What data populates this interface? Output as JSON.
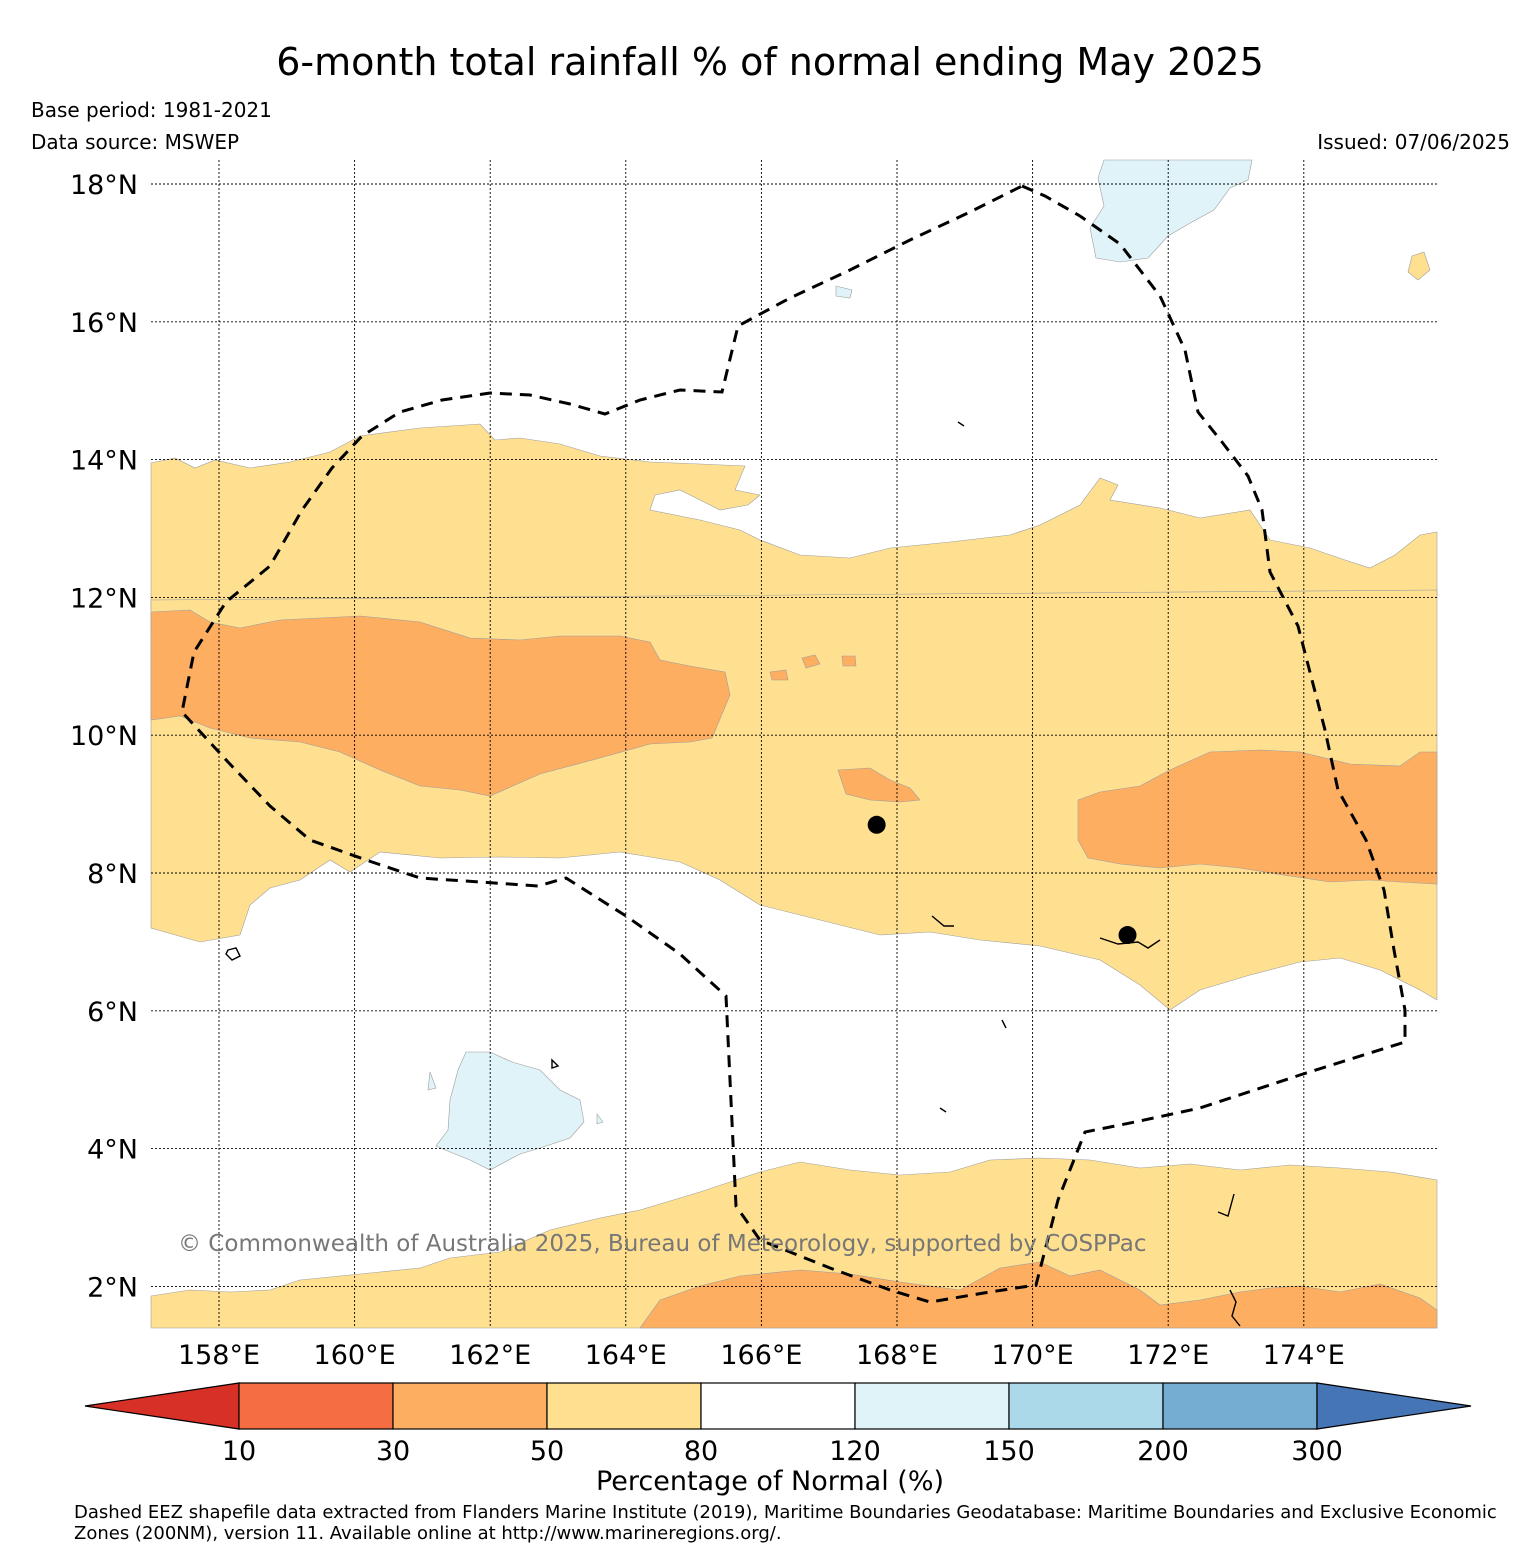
{
  "header": {
    "title": "6-month total rainfall % of normal ending May 2025",
    "base_period": "Base period: 1981-2021",
    "data_source": "Data source: MSWEP",
    "issued": "Issued: 07/06/2025"
  },
  "map": {
    "lat_labels": [
      "18°N",
      "16°N",
      "14°N",
      "12°N",
      "10°N",
      "8°N",
      "6°N",
      "4°N",
      "2°N"
    ],
    "lon_labels": [
      "158°E",
      "160°E",
      "162°E",
      "164°E",
      "166°E",
      "168°E",
      "170°E",
      "172°E",
      "174°E"
    ],
    "copyright": "© Commonwealth of Australia 2025, Bureau of Meteorology, supported by COSPPac",
    "extent": {
      "lon_min": 157,
      "lon_max": 176,
      "lat_min": 1.4,
      "lat_max": 18.3
    },
    "stations": [
      {
        "lon": 167.7,
        "lat": 8.7
      },
      {
        "lon": 171.4,
        "lat": 7.1
      }
    ]
  },
  "colorbar": {
    "title": "Percentage of Normal (%)",
    "ticks": [
      "10",
      "30",
      "50",
      "80",
      "120",
      "150",
      "200",
      "300"
    ],
    "colors": {
      "below_10": "#d73027",
      "10_30": "#f46d43",
      "30_50": "#fdae61",
      "50_80": "#fee090",
      "80_120": "#ffffff",
      "120_150": "#e0f3f8",
      "150_200": "#abd9e9",
      "200_300": "#74add1",
      "above_300": "#4575b4"
    }
  },
  "footnote": "Dashed EEZ shapefile data extracted from Flanders Marine Institute (2019), Maritime Boundaries Geodatabase: Maritime Boundaries and Exclusive Economic Zones (200NM), version 11. Available online at http://www.marineregions.org/."
}
